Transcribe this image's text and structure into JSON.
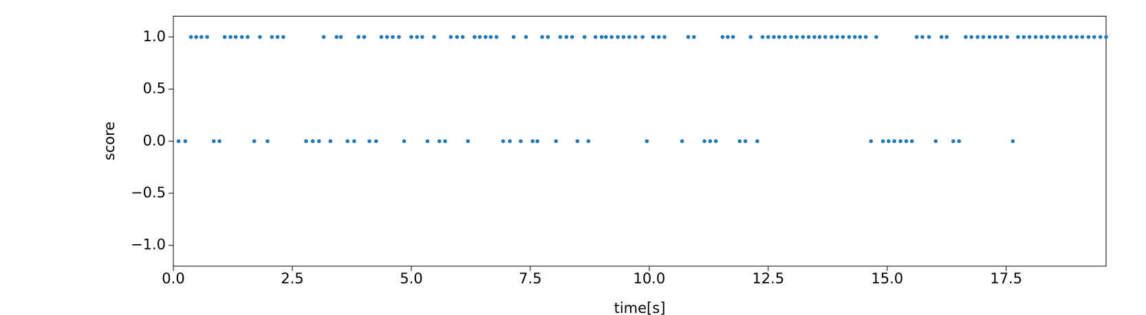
{
  "chart_data": {
    "type": "scatter",
    "xlabel": "time[s]",
    "ylabel": "score",
    "color": "#1f77b4",
    "x": [
      0.11,
      0.25,
      0.37,
      0.48,
      0.59,
      0.71,
      0.85,
      0.97,
      1.08,
      1.2,
      1.31,
      1.44,
      1.56,
      1.7,
      1.82,
      1.98,
      2.07,
      2.19,
      2.31,
      2.79,
      2.93,
      3.06,
      3.16,
      3.3,
      3.43,
      3.52,
      3.66,
      3.8,
      3.89,
      4.01,
      4.12,
      4.26,
      4.37,
      4.49,
      4.61,
      4.74,
      4.85,
      5.0,
      5.12,
      5.23,
      5.34,
      5.48,
      5.59,
      5.71,
      5.83,
      5.96,
      6.08,
      6.19,
      6.33,
      6.44,
      6.56,
      6.67,
      6.79,
      6.93,
      7.07,
      7.15,
      7.3,
      7.41,
      7.55,
      7.65,
      7.75,
      7.87,
      8.04,
      8.13,
      8.26,
      8.38,
      8.49,
      8.64,
      8.72,
      8.87,
      9.0,
      9.09,
      9.21,
      9.34,
      9.46,
      9.58,
      9.71,
      9.86,
      9.95,
      10.08,
      10.2,
      10.32,
      10.69,
      10.82,
      10.94,
      11.16,
      11.28,
      11.4,
      11.54,
      11.65,
      11.76,
      11.9,
      12.02,
      12.13,
      12.27,
      12.38,
      12.5,
      12.62,
      12.73,
      12.85,
      12.98,
      13.1,
      13.23,
      13.35,
      13.47,
      13.58,
      13.7,
      13.83,
      13.95,
      14.07,
      14.2,
      14.32,
      14.43,
      14.55,
      14.66,
      14.77,
      14.91,
      15.03,
      15.15,
      15.28,
      15.4,
      15.52,
      15.62,
      15.74,
      15.88,
      16.02,
      16.14,
      16.25,
      16.39,
      16.51,
      16.65,
      16.77,
      16.9,
      17.02,
      17.15,
      17.27,
      17.39,
      17.52,
      17.64,
      17.75,
      17.87,
      17.99,
      18.12,
      18.24,
      18.36,
      18.49,
      18.61,
      18.73,
      18.86,
      18.98,
      19.1,
      19.23,
      19.35,
      19.48,
      19.6
    ],
    "values": [
      0,
      0,
      1,
      1,
      1,
      1,
      0,
      0,
      1,
      1,
      1,
      1,
      1,
      0,
      1,
      0,
      1,
      1,
      1,
      0,
      0,
      0,
      1,
      0,
      1,
      1,
      0,
      0,
      1,
      1,
      0,
      0,
      1,
      1,
      1,
      1,
      0,
      1,
      1,
      1,
      0,
      1,
      0,
      0,
      1,
      1,
      1,
      0,
      1,
      1,
      1,
      1,
      1,
      0,
      0,
      1,
      0,
      1,
      0,
      0,
      1,
      1,
      0,
      1,
      1,
      1,
      0,
      1,
      0,
      1,
      1,
      1,
      1,
      1,
      1,
      1,
      1,
      1,
      0,
      1,
      1,
      1,
      0,
      1,
      1,
      0,
      0,
      0,
      1,
      1,
      1,
      0,
      0,
      1,
      0,
      1,
      1,
      1,
      1,
      1,
      1,
      1,
      1,
      1,
      1,
      1,
      1,
      1,
      1,
      1,
      1,
      1,
      1,
      1,
      0,
      1,
      0,
      0,
      0,
      0,
      0,
      0,
      1,
      1,
      1,
      0,
      1,
      1,
      0,
      0,
      1,
      1,
      1,
      1,
      1,
      1,
      1,
      1,
      0,
      1,
      1,
      1,
      1,
      1,
      1,
      1,
      1,
      1,
      1,
      1,
      1,
      1,
      1,
      1,
      1
    ],
    "xlim": [
      0,
      19.6
    ],
    "ylim": [
      -1.2,
      1.2
    ],
    "xticks": [
      {
        "value": 0,
        "label": "0.0"
      },
      2.5,
      {
        "value": 5,
        "label": "5.0"
      },
      7.5,
      {
        "value": 10,
        "label": "10.0"
      },
      12.5,
      {
        "value": 15,
        "label": "15.0"
      },
      17.5
    ],
    "yticks": [
      {
        "value": -1,
        "label": "−1.0"
      },
      {
        "value": -0.5,
        "label": "−0.5"
      },
      {
        "value": 0,
        "label": "0.0"
      },
      0.5,
      {
        "value": 1,
        "label": "1.0"
      }
    ]
  }
}
